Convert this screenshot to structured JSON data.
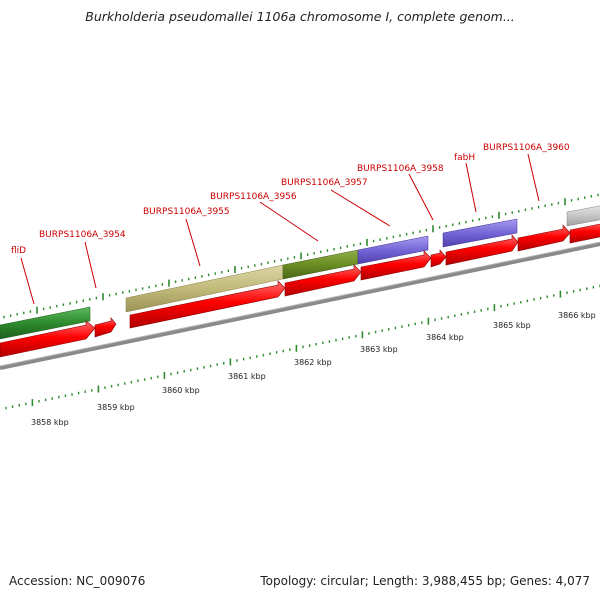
{
  "title": "Burkholderia pseudomallei 1106a chromosome I, complete genom...",
  "footer": {
    "accession": "Accession: NC_009076",
    "stats": "Topology: circular; Length: 3,988,455 bp; Genes: 4,077"
  },
  "gene_labels": [
    "fliD",
    "BURPS1106A_3954",
    "BURPS1106A_3955",
    "BURPS1106A_3956",
    "BURPS1106A_3957",
    "BURPS1106A_3958",
    "fabH",
    "BURPS1106A_3960"
  ],
  "scale_labels": [
    "3858 kbp",
    "3859 kbp",
    "3860 kbp",
    "3861 kbp",
    "3862 kbp",
    "3863 kbp",
    "3864 kbp",
    "3865 kbp",
    "3866 kbp"
  ],
  "colors": {
    "label_red": "#cc0000",
    "cds_red": "#ff0000",
    "tick_green": "#2e8b2e",
    "backbone_gray": "#808080",
    "gene_green": "#2e8b2e",
    "gene_khaki": "#c8c080",
    "gene_olive": "#6b8e23",
    "gene_purple": "#7b68d8",
    "gene_lightgray": "#c8c8c8"
  }
}
